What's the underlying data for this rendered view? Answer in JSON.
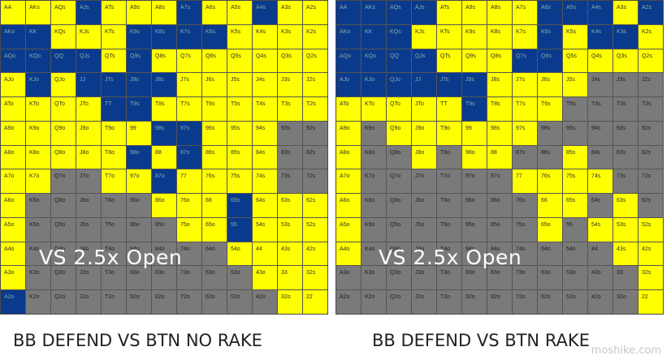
{
  "charts": [
    {
      "caption": "BB DEFEND VS BTN NO RAKE",
      "overlay": "VS 2.5x Open",
      "rows": [
        "yyybyyybyybyy",
        "bbyyybbbbyyyy",
        "bbbbybyyyyyyy",
        "ybybbbbyyyyyy",
        "yyyybbyyyyyyy",
        "yyyyyybbyyygg",
        "yyyyybybyyygg",
        "yyggyybyyyygg",
        "ygggggyyybyyy",
        "yggggggyybyyy",
        "yggggggggyyyy",
        "ygggggggggyyy",
        "bggggggggggyy"
      ]
    },
    {
      "caption": "BB DEFEND VS BTN RAKE",
      "overlay": "VS 2.5x Open",
      "rows": [
        "bbbbyyyybbbyb",
        "bbbyyyyybybby",
        "bbbbyyybbyyyy",
        "bbbbbbyyyyggg",
        "yyyyybyyygggg",
        "ygyyyyyyggggg",
        "yggygyyggyggg",
        "yggggggyyyygg",
        "ygggggggyygyg",
        "ygggggggygyyy",
        "yggggggggggyy",
        "ggggggggggggy",
        "ggggggggggggy"
      ]
    }
  ],
  "ranks": [
    "A",
    "K",
    "Q",
    "J",
    "T",
    "9",
    "8",
    "7",
    "6",
    "5",
    "4",
    "3",
    "2"
  ],
  "watermark": "moshike.com",
  "colors": {
    "yellow": "#ffff00",
    "blue": "#0a3a8c",
    "gray": "#7a7a7a"
  }
}
